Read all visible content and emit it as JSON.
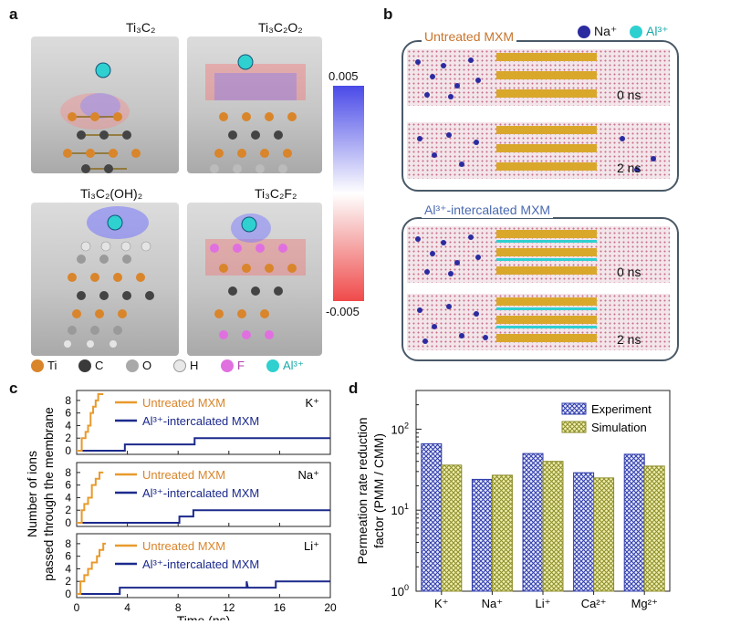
{
  "panel_labels": {
    "a": "a",
    "b": "b",
    "c": "c",
    "d": "d"
  },
  "panel_a": {
    "models": [
      {
        "label": "Ti₃C₂"
      },
      {
        "label": "Ti₃C₂O₂"
      },
      {
        "label": "Ti₃C₂(OH)₂"
      },
      {
        "label": "Ti₃C₂F₂"
      }
    ],
    "colorbar": {
      "max_label": "0.005",
      "min_label": "-0.005",
      "colors": [
        "#4a4ae8",
        "#ffffff",
        "#f04a4a"
      ]
    },
    "atom_legend": [
      {
        "symbol": "Ti",
        "color": "#d9852b"
      },
      {
        "symbol": "C",
        "color": "#3a3a3a"
      },
      {
        "symbol": "O",
        "color": "#a9a9a9"
      },
      {
        "symbol": "H",
        "color": "#e8e8e8"
      },
      {
        "symbol": "F",
        "color": "#e070e0"
      },
      {
        "symbol": "Al³⁺",
        "color": "#2fd0d0"
      }
    ]
  },
  "panel_b": {
    "legend": [
      {
        "label": "Na⁺",
        "color": "#2b2ba0"
      },
      {
        "label": "Al³⁺",
        "color": "#2fd0d0"
      }
    ],
    "boxes": [
      {
        "title": "Untreated MXM",
        "title_color": "#c8742c",
        "times": [
          "0 ns",
          "2 ns"
        ]
      },
      {
        "title": "Al³⁺-intercalated MXM",
        "title_color": "#4a6ab0",
        "times": [
          "0 ns",
          "2 ns"
        ]
      }
    ]
  },
  "panel_c": {
    "chart_data": {
      "type": "line",
      "xlabel": "Time (ns)",
      "ylabel_lines": [
        "Number of ions",
        "passed through the membrane"
      ],
      "xlim": [
        0,
        20
      ],
      "xticks": [
        0,
        4,
        8,
        12,
        16,
        20
      ],
      "ylim": [
        0,
        9
      ],
      "yticks": [
        0,
        2,
        4,
        6,
        8
      ],
      "series_colors": {
        "untreated": "#e89a2c",
        "al": "#1c2a8c"
      },
      "subplots": [
        {
          "ion": "K⁺",
          "legend": [
            "Untreated MXM",
            "Al³⁺-intercalated MXM"
          ],
          "untreated": {
            "x": [
              0,
              0.4,
              0.4,
              0.7,
              0.7,
              0.9,
              0.9,
              1.1,
              1.1,
              1.3,
              1.3,
              1.5,
              1.5,
              1.7,
              1.7,
              2.1
            ],
            "y": [
              0,
              0,
              2,
              2,
              3,
              3,
              4,
              4,
              6,
              6,
              7,
              7,
              8,
              8,
              9,
              9
            ]
          },
          "al": {
            "x": [
              0,
              3.8,
              3.8,
              9.3,
              9.3,
              20
            ],
            "y": [
              0,
              0,
              1,
              1,
              2,
              2
            ]
          }
        },
        {
          "ion": "Na⁺",
          "legend": [
            "Untreated MXM",
            "Al³⁺-intercalated MXM"
          ],
          "untreated": {
            "x": [
              0,
              0.4,
              0.4,
              0.6,
              0.6,
              0.9,
              0.9,
              1.2,
              1.2,
              1.5,
              1.5,
              1.8,
              1.8,
              2.1
            ],
            "y": [
              0,
              0,
              2,
              2,
              3,
              3,
              4,
              4,
              6,
              6,
              7,
              7,
              8,
              8
            ]
          },
          "al": {
            "x": [
              0,
              8.1,
              8.1,
              9.2,
              9.2,
              20
            ],
            "y": [
              0,
              0,
              1,
              1,
              2,
              2
            ]
          }
        },
        {
          "ion": "Li⁺",
          "legend": [
            "Untreated MXM",
            "Al³⁺-intercalated MXM"
          ],
          "untreated": {
            "x": [
              0,
              0.3,
              0.3,
              0.6,
              0.6,
              0.9,
              0.9,
              1.2,
              1.2,
              1.6,
              1.6,
              1.8,
              1.8,
              2.1,
              2.1,
              2.3
            ],
            "y": [
              0,
              0,
              2,
              2,
              3,
              3,
              4,
              4,
              5,
              5,
              6,
              6,
              7,
              7,
              8,
              8
            ]
          },
          "al": {
            "x": [
              0,
              3.4,
              3.4,
              13.4,
              13.4,
              13.5,
              13.5,
              15.7,
              15.7,
              20
            ],
            "y": [
              0,
              0,
              1,
              1,
              2,
              1,
              1,
              1,
              2,
              2
            ]
          }
        }
      ]
    }
  },
  "panel_d": {
    "chart_data": {
      "type": "bar",
      "scale": "log",
      "ylabel_lines": [
        "Permeation rate reduction",
        "factor (PMM / CMM)"
      ],
      "categories": [
        "K⁺",
        "Na⁺",
        "Li⁺",
        "Ca²⁺",
        "Mg²⁺"
      ],
      "ylim": [
        1,
        300
      ],
      "ytick_labels": [
        {
          "base": "10",
          "exp": "0",
          "value": 1
        },
        {
          "base": "10",
          "exp": "1",
          "value": 10
        },
        {
          "base": "10",
          "exp": "2",
          "value": 100
        }
      ],
      "series": [
        {
          "name": "Experiment",
          "values": [
            66,
            24,
            50,
            29,
            49
          ],
          "color": "#2e3aa8"
        },
        {
          "name": "Simulation",
          "values": [
            36,
            27,
            40,
            25,
            35
          ],
          "color": "#8c8c2a"
        }
      ]
    }
  }
}
